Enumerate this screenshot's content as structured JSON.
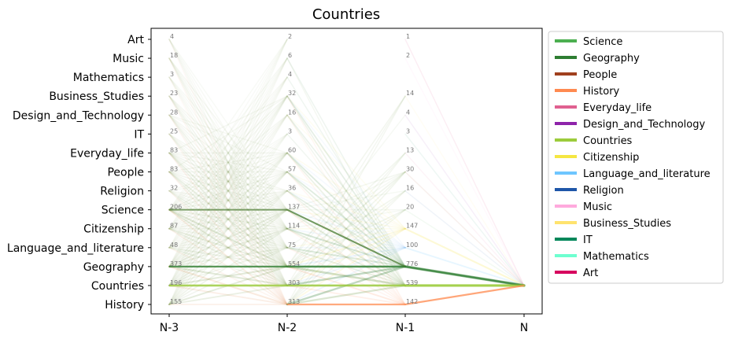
{
  "chart_data": {
    "type": "parallel-flow",
    "title": "Countries",
    "axes": [
      "N-3",
      "N-2",
      "N-1",
      "N"
    ],
    "target": "Countries",
    "categories": [
      "Art",
      "Music",
      "Mathematics",
      "Business_Studies",
      "Design_and_Technology",
      "IT",
      "Everyday_life",
      "People",
      "Religion",
      "Science",
      "Citizenship",
      "Language_and_literature",
      "Geography",
      "Countries",
      "History"
    ],
    "counts": {
      "N-3": {
        "Art": 4,
        "Music": 18,
        "Mathematics": 3,
        "Business_Studies": 23,
        "Design_and_Technology": 28,
        "IT": 25,
        "Everyday_life": 83,
        "People": 83,
        "Religion": 32,
        "Science": 206,
        "Citizenship": 87,
        "Language_and_literature": 48,
        "Geography": 373,
        "Countries": 196,
        "History": 155
      },
      "N-2": {
        "Art": 2,
        "Music": 6,
        "Mathematics": 4,
        "Business_Studies": 32,
        "Design_and_Technology": 16,
        "IT": 3,
        "Everyday_life": 60,
        "People": 57,
        "Religion": 36,
        "Science": 137,
        "Citizenship": 114,
        "Language_and_literature": 75,
        "Geography": 554,
        "Countries": 303,
        "History": 313
      },
      "N-1": {
        "Art": 1,
        "Music": 2,
        "Business_Studies": 14,
        "Design_and_Technology": 4,
        "IT": 3,
        "Everyday_life": 13,
        "People": 30,
        "Religion": 16,
        "Science": 20,
        "Citizenship": 147,
        "Language_and_literature": 100,
        "Geography": 776,
        "Countries": 539,
        "History": 142
      }
    },
    "legend": {
      "placement": "outside-right",
      "entries": [
        {
          "name": "Science",
          "color": "#4caf50"
        },
        {
          "name": "Geography",
          "color": "#2e7d32"
        },
        {
          "name": "People",
          "color": "#a0401e"
        },
        {
          "name": "History",
          "color": "#ff8a50"
        },
        {
          "name": "Everyday_life",
          "color": "#e06090"
        },
        {
          "name": "Design_and_Technology",
          "color": "#8e24aa"
        },
        {
          "name": "Countries",
          "color": "#9ccc3c"
        },
        {
          "name": "Citizenship",
          "color": "#f5e642"
        },
        {
          "name": "Language_and_literature",
          "color": "#6ec6ff"
        },
        {
          "name": "Religion",
          "color": "#1e56a8"
        },
        {
          "name": "Music",
          "color": "#ffaadd"
        },
        {
          "name": "Business_Studies",
          "color": "#ffe36e"
        },
        {
          "name": "IT",
          "color": "#00875a"
        },
        {
          "name": "Mathematics",
          "color": "#6effd0"
        },
        {
          "name": "Art",
          "color": "#d6005e"
        }
      ]
    },
    "grid": false
  }
}
